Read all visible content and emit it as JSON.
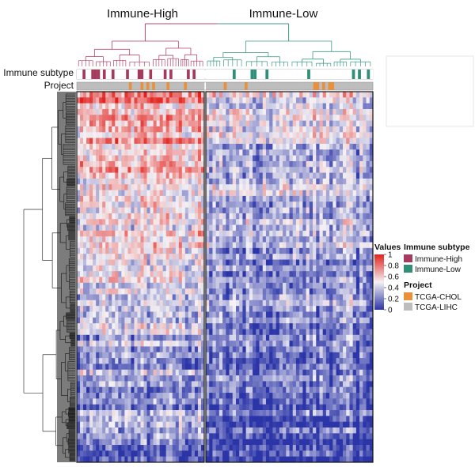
{
  "chart_data": {
    "type": "heatmap",
    "title": "",
    "column_groups": [
      "Immune-High",
      "Immune-Low"
    ],
    "row_annotations": [
      "Immune subtype",
      "Project"
    ],
    "color_scale": {
      "title": "Values",
      "ticks": [
        "1",
        "0.8",
        "0.6",
        "0.4",
        "0.2",
        "0"
      ],
      "tick_values": [
        1,
        0.8,
        0.6,
        0.4,
        0.2,
        0
      ],
      "range": [
        0,
        1
      ],
      "colors": {
        "low": "#2b35a8",
        "mid": "#f4f1f4",
        "high": "#e3211c"
      }
    },
    "legend": {
      "immune_subtype": {
        "title": "Immune subtype",
        "items": [
          {
            "label": "Immune-High",
            "color": "#a43a5c"
          },
          {
            "label": "Immune-Low",
            "color": "#2f8f79"
          }
        ]
      },
      "project": {
        "title": "Project",
        "items": [
          {
            "label": "TCGA-CHOL",
            "color": "#e8903a"
          },
          {
            "label": "TCGA-LIHC",
            "color": "#bdbdbd"
          }
        ]
      }
    },
    "dendrogram_colors": {
      "immune_high": "#b5456a",
      "immune_low": "#3c9a86",
      "rows": "#333333"
    }
  }
}
